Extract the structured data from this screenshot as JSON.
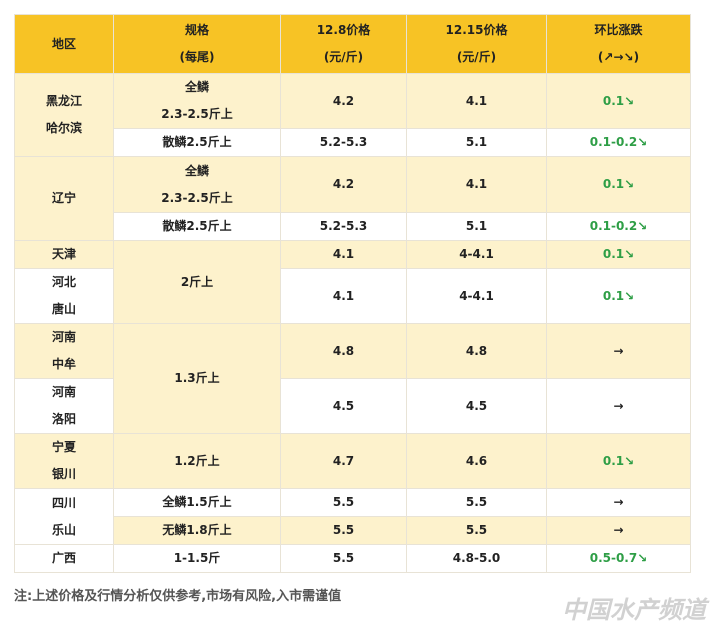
{
  "table": {
    "header": [
      [
        "地区"
      ],
      [
        "规格",
        "(每尾)"
      ],
      [
        "12.8价格",
        "(元/斤)"
      ],
      [
        "12.15价格",
        "(元/斤)"
      ],
      [
        "环比涨跌",
        "(↗→↘)"
      ]
    ],
    "rows": [
      {
        "region": [
          "黑龙江",
          "哈尔滨"
        ],
        "spec": [
          "全鳞",
          "2.3-2.5斤上"
        ],
        "p1": "4.2",
        "p2": "4.1",
        "change": "0.1↘"
      },
      {
        "spec": [
          "散鳞2.5斤上"
        ],
        "p1": "5.2-5.3",
        "p2": "5.1",
        "change": "0.1-0.2↘"
      },
      {
        "region": [
          "辽宁"
        ],
        "spec": [
          "全鳞",
          "2.3-2.5斤上"
        ],
        "p1": "4.2",
        "p2": "4.1",
        "change": "0.1↘"
      },
      {
        "spec": [
          "散鳞2.5斤上"
        ],
        "p1": "5.2-5.3",
        "p2": "5.1",
        "change": "0.1-0.2↘"
      },
      {
        "region": [
          "天津"
        ],
        "spec": [
          "2斤上"
        ],
        "p1": "4.1",
        "p2": "4-4.1",
        "change": "0.1↘"
      },
      {
        "region": [
          "河北",
          "唐山"
        ],
        "p1": "4.1",
        "p2": "4-4.1",
        "change": "0.1↘"
      },
      {
        "region": [
          "河南",
          "中牟"
        ],
        "spec": [
          "1.3斤上"
        ],
        "p1": "4.8",
        "p2": "4.8",
        "change": "→"
      },
      {
        "region": [
          "河南",
          "洛阳"
        ],
        "p1": "4.5",
        "p2": "4.5",
        "change": "→"
      },
      {
        "region": [
          "宁夏",
          "银川"
        ],
        "spec": [
          "1.2斤上"
        ],
        "p1": "4.7",
        "p2": "4.6",
        "change": "0.1↘"
      },
      {
        "region": [
          "四川",
          "乐山"
        ],
        "spec": [
          "全鳞1.5斤上"
        ],
        "p1": "5.5",
        "p2": "5.5",
        "change": "→"
      },
      {
        "spec": [
          "无鳞1.8斤上"
        ],
        "p1": "5.5",
        "p2": "5.5",
        "change": "→"
      },
      {
        "region": [
          "广西"
        ],
        "spec": [
          "1-1.5斤"
        ],
        "p1": "5.5",
        "p2": "4.8-5.0",
        "change": "0.5-0.7↘"
      }
    ]
  },
  "note": "注:上述价格及行情分析仅供参考,市场有风险,入市需谨值",
  "watermark": "中国水产频道"
}
